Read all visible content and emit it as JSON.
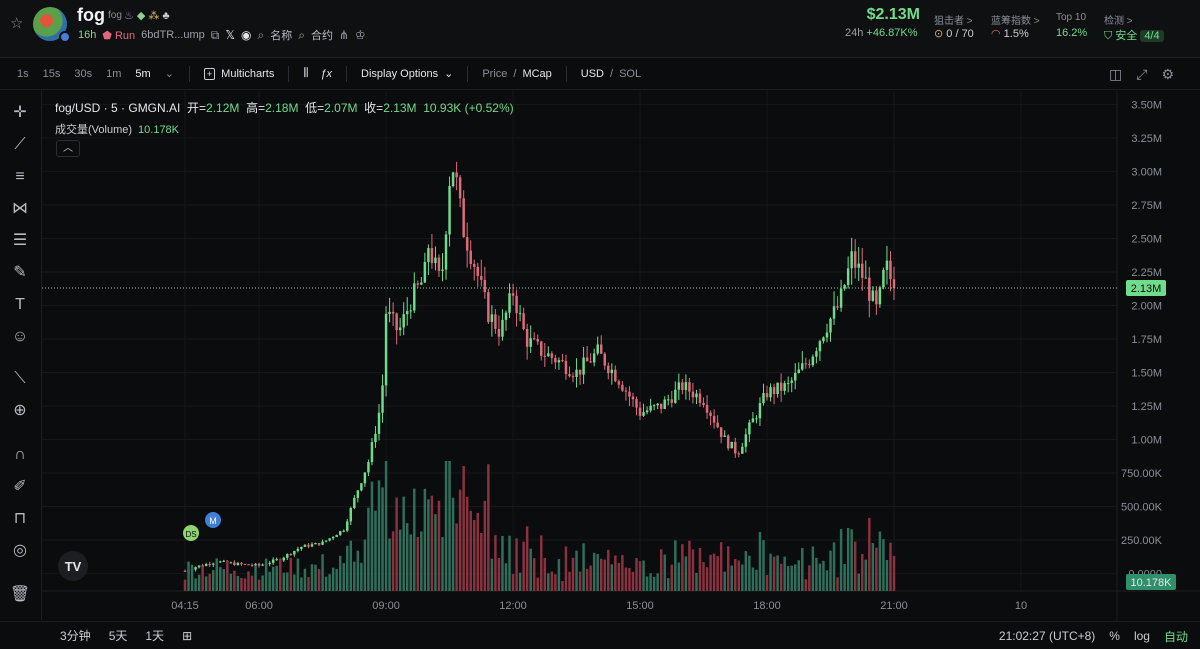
{
  "header": {
    "token_name": "fog",
    "token_sub": "fog",
    "age": "16h",
    "run_label": "Run",
    "address": "6bdTR...ump",
    "name_label": "名称",
    "contract_label": "合约",
    "price": "$2.13M",
    "period_label": "24h",
    "change": "+46.87K%",
    "stats": [
      {
        "label": "狙击者 >",
        "value": "0 / 70"
      },
      {
        "label": "蓝筹指数 >",
        "value": "1.5%"
      },
      {
        "label": "Top 10",
        "value": "16.2%"
      },
      {
        "label": "检测 >",
        "value": "安全",
        "badge": "4/4"
      }
    ]
  },
  "toolbar": {
    "timeframes": [
      "1s",
      "15s",
      "30s",
      "1m",
      "5m"
    ],
    "active_timeframe": "5m",
    "multicharts": "Multicharts",
    "display_options": "Display Options",
    "price_label": "Price",
    "mcap_label": "MCap",
    "usd_label": "USD",
    "sol_label": "SOL",
    "icons": [
      "camera-icon",
      "fullscreen-icon",
      "settings-icon"
    ]
  },
  "left_tools": [
    "crosshair-icon",
    "trendline-icon",
    "fib-icon",
    "pattern-icon",
    "prediction-icon",
    "brush-icon",
    "text-icon",
    "emoji-icon",
    "ruler-icon",
    "zoom-icon",
    "magnet-icon",
    "lock-draw-icon",
    "lock-icon",
    "eye-icon",
    "trash-icon"
  ],
  "legend": {
    "symbol": "fog/USD · 5 · GMGN.AI",
    "open_label": "开=",
    "open": "2.12M",
    "high_label": "高=",
    "high": "2.18M",
    "low_label": "低=",
    "low": "2.07M",
    "close_label": "收=",
    "close": "2.13M",
    "change": "10.93K (+0.52%)",
    "volume_label": "成交量(Volume)",
    "volume": "10.178K"
  },
  "colors": {
    "up": "#6fdc8c",
    "down": "#e06a7c",
    "up_vol": "#2f6f5a",
    "down_vol": "#8a3240",
    "bg": "#0b0c0e"
  },
  "markers": [
    "DS",
    "M"
  ],
  "bottom": {
    "ranges": [
      "3分钟",
      "5天",
      "1天"
    ],
    "time": "21:02:27 (UTC+8)",
    "percent": "%",
    "log": "log",
    "auto": "自动"
  },
  "chart_data": {
    "type": "candlestick",
    "y_unit": "market cap (USD)",
    "y_ticks": [
      "3.50M",
      "3.25M",
      "3.00M",
      "2.75M",
      "2.50M",
      "2.25M",
      "2.00M",
      "1.75M",
      "1.50M",
      "1.25M",
      "1.00M",
      "750.00K",
      "500.00K",
      "250.00K",
      "0.0000"
    ],
    "y_tick_values": [
      3500000,
      3250000,
      3000000,
      2750000,
      2500000,
      2250000,
      2000000,
      1750000,
      1500000,
      1250000,
      1000000,
      750000,
      500000,
      250000,
      0
    ],
    "ylim": [
      -130000,
      3600000
    ],
    "x_ticks": [
      "04:15",
      "06:00",
      "09:00",
      "12:00",
      "15:00",
      "18:00",
      "21:00",
      "10"
    ],
    "x_tick_hours": [
      4.25,
      6.0,
      9.0,
      12.0,
      15.0,
      18.0,
      21.0,
      24.0
    ],
    "current_price_label": "2.13M",
    "current_price": 2130000,
    "volume_label_tag": "10.178K",
    "anchors": [
      [
        4.25,
        20000
      ],
      [
        4.5,
        50000
      ],
      [
        5.0,
        90000
      ],
      [
        5.5,
        70000
      ],
      [
        6.0,
        60000
      ],
      [
        6.5,
        110000
      ],
      [
        7.0,
        200000
      ],
      [
        7.5,
        230000
      ],
      [
        8.0,
        330000
      ],
      [
        8.3,
        600000
      ],
      [
        8.6,
        850000
      ],
      [
        8.9,
        1300000
      ],
      [
        9.0,
        1950000
      ],
      [
        9.3,
        1800000
      ],
      [
        9.6,
        2050000
      ],
      [
        9.9,
        2200000
      ],
      [
        10.0,
        2450000
      ],
      [
        10.3,
        2150000
      ],
      [
        10.5,
        2950000
      ],
      [
        10.6,
        3050000
      ],
      [
        10.8,
        2600000
      ],
      [
        11.1,
        2300000
      ],
      [
        11.4,
        1950000
      ],
      [
        11.7,
        1800000
      ],
      [
        12.0,
        2100000
      ],
      [
        12.3,
        1750000
      ],
      [
        12.7,
        1650000
      ],
      [
        13.0,
        1600000
      ],
      [
        13.5,
        1500000
      ],
      [
        14.0,
        1650000
      ],
      [
        14.5,
        1450000
      ],
      [
        15.0,
        1200000
      ],
      [
        15.5,
        1250000
      ],
      [
        16.0,
        1400000
      ],
      [
        16.5,
        1300000
      ],
      [
        17.0,
        1000000
      ],
      [
        17.3,
        900000
      ],
      [
        17.6,
        1100000
      ],
      [
        18.0,
        1350000
      ],
      [
        18.5,
        1400000
      ],
      [
        19.0,
        1600000
      ],
      [
        19.4,
        1850000
      ],
      [
        19.7,
        2000000
      ],
      [
        20.0,
        2350000
      ],
      [
        20.3,
        2200000
      ],
      [
        20.6,
        1950000
      ],
      [
        20.8,
        2300000
      ],
      [
        21.0,
        2130000
      ]
    ]
  }
}
